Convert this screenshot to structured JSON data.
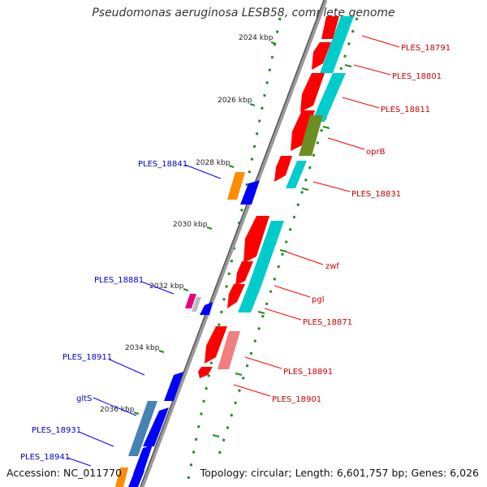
{
  "title": "Pseudomonas aeruginosa LESB58, complete genome",
  "accession": "Accession: NC_011770",
  "topology": "Topology: circular; Length: 6,601,757 bp; Genes: 6,026",
  "colors": {
    "forward": "#ff0000",
    "reverse": "#0000ff",
    "cds_forward": "#00cccc",
    "cds_reverse": "#4682b4",
    "accent_orange": "#ff8c00",
    "accent_olive": "#6b8e23",
    "accent_magenta": "#e6007e",
    "accent_salmon": "#f08080",
    "backbone": "#808080",
    "dots": "#228b22",
    "label_forward": "#cc0000",
    "label_reverse": "#0000cc"
  },
  "ticks": [
    "2024 kbp",
    "2026 kbp",
    "2028 kbp",
    "2030 kbp",
    "2032 kbp",
    "2034 kbp",
    "2036 kbp"
  ],
  "genes_right": [
    "PLES_18791",
    "PLES_18801",
    "PLES_18811",
    "oprB",
    "PLES_18831",
    "zwf",
    "pgl",
    "PLES_18871",
    "PLES_18891",
    "PLES_18901"
  ],
  "genes_left": [
    "PLES_18841",
    "PLES_18881",
    "PLES_18911",
    "gltS",
    "PLES_18931",
    "PLES_18941"
  ]
}
